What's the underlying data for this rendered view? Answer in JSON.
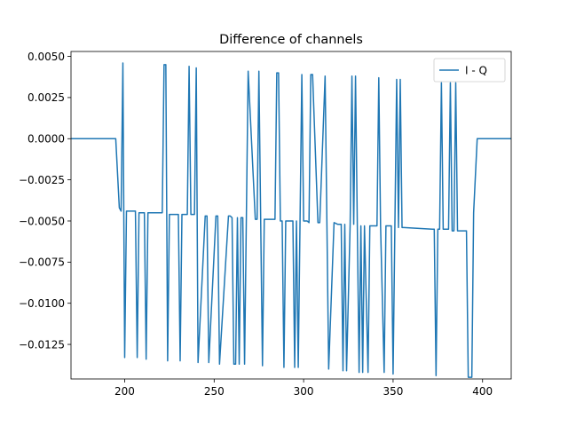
{
  "chart_data": {
    "type": "line",
    "title": "Difference of channels",
    "xlabel": "",
    "ylabel": "",
    "xlim": [
      170,
      416
    ],
    "ylim": [
      -0.0146,
      0.0053
    ],
    "xticks": [
      200,
      250,
      300,
      350,
      400
    ],
    "yticks": [
      0.005,
      0.0025,
      0.0,
      -0.0025,
      -0.005,
      -0.0075,
      -0.01,
      -0.0125
    ],
    "xtick_labels": [
      "200",
      "250",
      "300",
      "350",
      "400"
    ],
    "ytick_labels": [
      "0.0050",
      "0.0025",
      "0.0000",
      "−0.0025",
      "−0.0050",
      "−0.0075",
      "−0.0100",
      "−0.0125"
    ],
    "grid": false,
    "legend_position": "top-right",
    "color": "#1f77b4",
    "series": [
      {
        "name": "I - Q",
        "x": [
          170,
          195,
          197,
          198,
          199,
          200,
          201,
          202,
          206,
          207,
          208,
          211,
          212,
          213,
          216,
          221,
          222,
          223,
          224,
          225,
          230,
          231,
          232,
          235,
          236,
          237,
          239,
          240,
          241,
          245,
          246,
          247,
          251,
          252,
          253,
          258,
          259,
          260,
          261,
          262,
          263,
          264,
          265,
          266,
          267,
          268,
          269,
          273,
          274,
          275,
          276,
          277,
          278,
          284,
          285,
          286,
          287,
          288,
          289,
          290,
          291,
          294,
          295,
          296,
          297,
          298,
          299,
          300,
          302,
          303,
          304,
          305,
          308,
          309,
          312,
          313,
          314,
          317,
          319,
          320,
          321,
          322,
          323,
          324,
          326,
          327,
          328,
          329,
          330,
          331,
          332,
          333,
          334,
          336,
          337,
          341,
          342,
          343,
          345,
          346,
          349,
          350,
          351,
          352,
          353,
          354,
          355,
          356,
          372,
          373,
          374,
          375,
          376,
          377,
          378,
          381,
          382,
          383,
          384,
          385,
          386,
          387,
          391,
          392,
          393,
          394,
          395,
          397,
          398,
          416
        ],
        "y": [
          0.0,
          0.0,
          -0.0042,
          -0.0044,
          0.0046,
          -0.0133,
          -0.0044,
          -0.0044,
          -0.0044,
          -0.0133,
          -0.0045,
          -0.0045,
          -0.0134,
          -0.0045,
          -0.0045,
          -0.0045,
          0.0045,
          0.0045,
          -0.0135,
          -0.0046,
          -0.0046,
          -0.0135,
          -0.0046,
          -0.0046,
          0.0044,
          -0.0046,
          -0.0046,
          0.0043,
          -0.0136,
          -0.0047,
          -0.0047,
          -0.0136,
          -0.0047,
          -0.0047,
          -0.0137,
          -0.0047,
          -0.0047,
          -0.0048,
          -0.0137,
          -0.0137,
          -0.0048,
          -0.0137,
          -0.0048,
          -0.0048,
          -0.0137,
          -0.0048,
          0.0041,
          -0.0049,
          -0.0049,
          0.0041,
          -0.0049,
          -0.0138,
          -0.0049,
          -0.0049,
          0.004,
          0.004,
          -0.005,
          -0.005,
          -0.0139,
          -0.005,
          -0.005,
          -0.005,
          -0.0139,
          -0.005,
          -0.0139,
          -0.005,
          0.0039,
          -0.005,
          -0.005,
          -0.0051,
          0.0039,
          0.0039,
          -0.0051,
          -0.0051,
          0.0038,
          -0.0051,
          -0.014,
          -0.0051,
          -0.0052,
          -0.0052,
          -0.0052,
          -0.0141,
          -0.0052,
          -0.0141,
          -0.0052,
          0.0038,
          -0.0052,
          0.0038,
          -0.0052,
          -0.0142,
          -0.0053,
          -0.0142,
          -0.0053,
          -0.0142,
          -0.0053,
          -0.0053,
          0.0037,
          -0.0053,
          -0.0142,
          -0.0053,
          -0.0053,
          -0.0143,
          -0.0053,
          0.0036,
          -0.0054,
          0.0036,
          -0.0054,
          -0.0054,
          -0.0055,
          -0.0055,
          -0.0144,
          -0.0055,
          -0.0055,
          0.0034,
          -0.0055,
          -0.0055,
          0.0034,
          -0.0056,
          -0.0056,
          0.0034,
          -0.0056,
          -0.0056,
          -0.0056,
          -0.0145,
          -0.0145,
          -0.0145,
          -0.0045,
          0.0,
          0.0,
          0.0
        ]
      }
    ]
  }
}
